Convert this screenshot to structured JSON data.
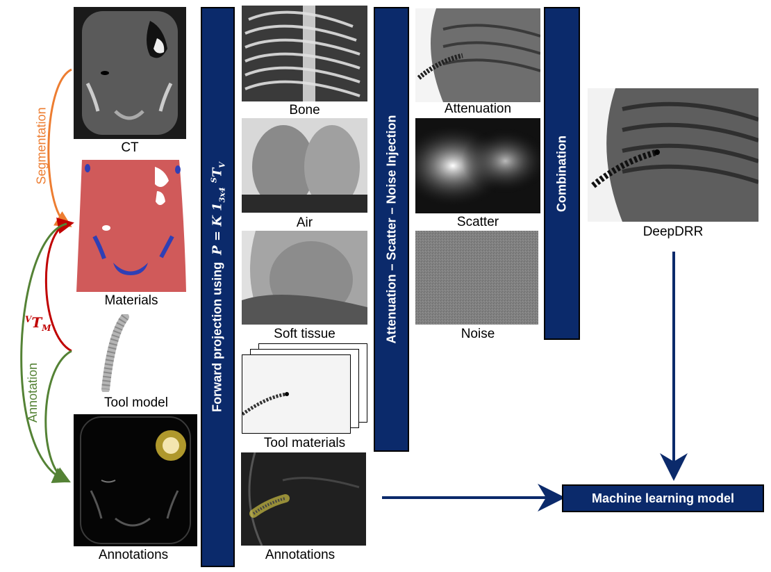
{
  "left_column": {
    "ct_label": "CT",
    "materials_label": "Materials",
    "tool_model_label": "Tool model",
    "annotations_label": "Annotations"
  },
  "arrows": {
    "segmentation_label": "Segmentation",
    "annotation_label": "Annotation",
    "transform_label_base": "T",
    "transform_label_sup": "V",
    "transform_label_sub": "M"
  },
  "projection_bar": {
    "label_text": "Forward projection using",
    "formula": "P = K 1",
    "formula_sub": "3x4",
    "formula_sup": "S",
    "formula_end": "T",
    "formula_end_sub": "V"
  },
  "projections": {
    "bone_label": "Bone",
    "air_label": "Air",
    "soft_tissue_label": "Soft tissue",
    "tool_materials_label": "Tool materials",
    "annotations_label": "Annotations"
  },
  "effects_bar": {
    "label": "Attenuation – Scatter – Noise Injection"
  },
  "effects": {
    "attenuation_label": "Attenuation",
    "scatter_label": "Scatter",
    "noise_label": "Noise"
  },
  "combination_bar": {
    "label": "Combination"
  },
  "output": {
    "deepdrr_label": "DeepDRR"
  },
  "ml_model": {
    "label": "Machine learning model"
  },
  "colors": {
    "navy": "#0b2a6b",
    "segmentation": "#ed7d31",
    "annotation": "#548235",
    "transform": "#c00000",
    "materials_red": "#d05a5a",
    "materials_blue": "#2f3fb5"
  }
}
